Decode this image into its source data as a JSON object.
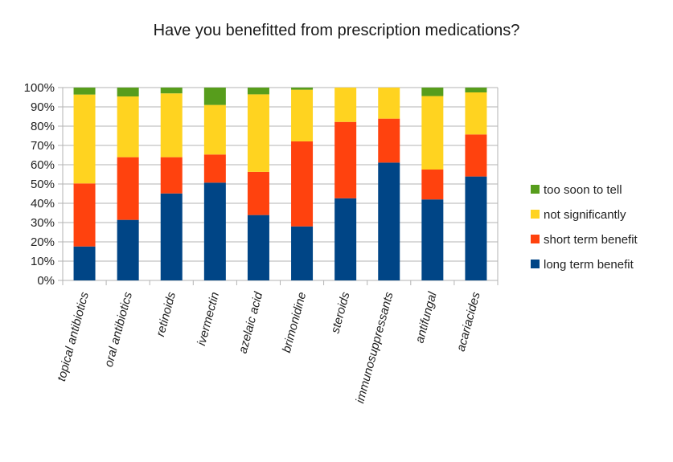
{
  "chart_data": {
    "type": "bar",
    "stacked": "percent",
    "title": "Have you benefitted from prescription medications?",
    "xlabel": "",
    "ylabel": "",
    "ylim": [
      0,
      100
    ],
    "yticks": [
      "0%",
      "10%",
      "20%",
      "30%",
      "40%",
      "50%",
      "60%",
      "70%",
      "80%",
      "90%",
      "100%"
    ],
    "grid": true,
    "legend_position": "right",
    "categories": [
      "topical antibiotics",
      "oral antibiotics",
      "retinoids",
      "ivermectin",
      "azelaic acid",
      "brimonidine",
      "steroids",
      "immunosuppressants",
      "antifungal",
      "acariacides"
    ],
    "series": [
      {
        "name": "long term benefit",
        "color": "#004586",
        "values": [
          17.6,
          31.4,
          45.1,
          50.7,
          33.9,
          28.0,
          42.6,
          61.1,
          42.0,
          53.9
        ]
      },
      {
        "name": "short term benefit",
        "color": "#FF420E",
        "values": [
          32.7,
          32.5,
          18.8,
          14.6,
          22.4,
          44.1,
          39.6,
          22.8,
          15.5,
          21.8
        ]
      },
      {
        "name": "not significantly",
        "color": "#FFD320",
        "values": [
          46.1,
          31.5,
          33.1,
          25.7,
          40.2,
          26.8,
          17.8,
          16.1,
          38.1,
          21.8
        ]
      },
      {
        "name": "too soon to tell",
        "color": "#579D1C",
        "values": [
          3.6,
          4.6,
          3.0,
          9.0,
          3.5,
          1.1,
          0.0,
          0.0,
          4.4,
          2.5
        ]
      }
    ],
    "legend_order": [
      "too soon to tell",
      "not significantly",
      "short term benefit",
      "long term benefit"
    ]
  }
}
